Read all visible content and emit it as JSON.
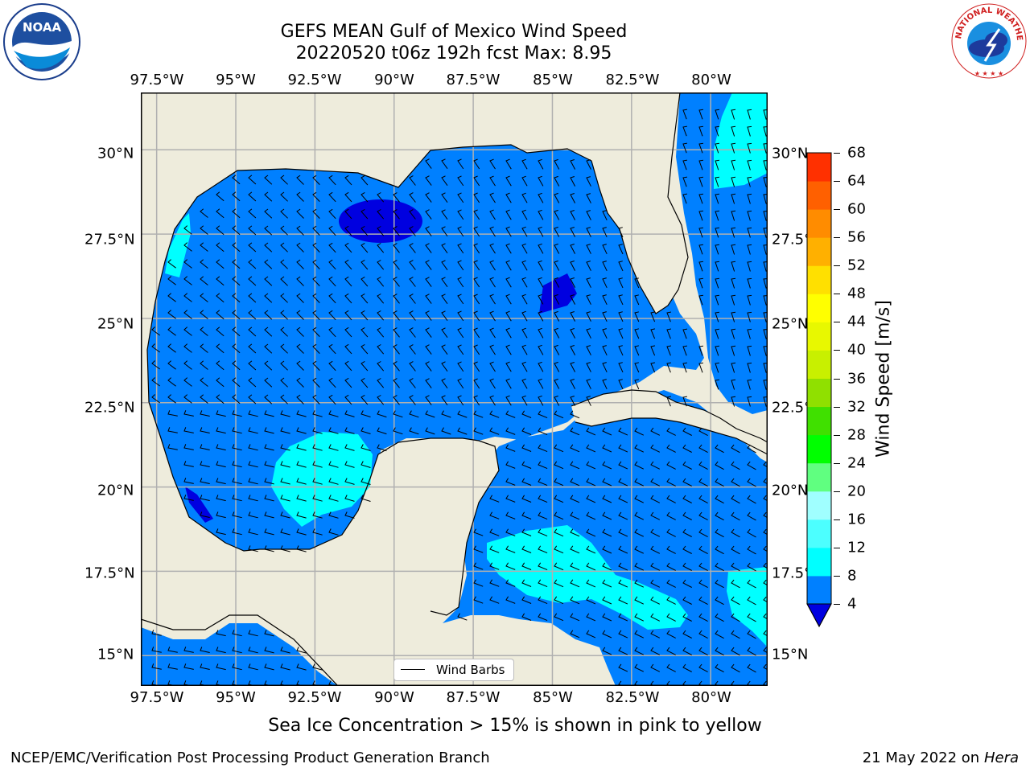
{
  "title": "GEFS MEAN Gulf of Mexico Wind Speed",
  "subtitle": "20220520 t06z 192h fcst   Max: 8.95",
  "map": {
    "lon_labels": [
      "97.5°W",
      "95°W",
      "92.5°W",
      "90°W",
      "87.5°W",
      "85°W",
      "82.5°W",
      "80°W"
    ],
    "lat_labels": [
      "30°N",
      "27.5°N",
      "25°N",
      "22.5°N",
      "20°N",
      "17.5°N",
      "15°N"
    ],
    "lon_values": [
      -97.5,
      -95,
      -92.5,
      -90,
      -87.5,
      -85,
      -82.5,
      -80
    ],
    "lat_values": [
      30,
      27.5,
      25,
      22.5,
      20,
      17.5,
      15
    ],
    "extent": {
      "lon_min": -98,
      "lon_max": -78.2,
      "lat_min": 14.1,
      "lat_max": 31.7
    },
    "land_color": "#eeecdc",
    "ocean_fill_color": "#0080ff",
    "legend_label": "Wind Barbs",
    "max_value": "8.95"
  },
  "colorbar": {
    "title": "Wind Speed [m/s]",
    "ticks": [
      "4",
      "8",
      "12",
      "16",
      "20",
      "24",
      "28",
      "32",
      "36",
      "40",
      "44",
      "48",
      "52",
      "56",
      "60",
      "64",
      "68"
    ],
    "colors": [
      "#0080ff",
      "#00ffff",
      "#4cffff",
      "#a0ffff",
      "#60ff80",
      "#00ff00",
      "#40e000",
      "#90e000",
      "#c8f000",
      "#e8f800",
      "#ffff00",
      "#ffe000",
      "#ffb000",
      "#ff8c00",
      "#ff6000",
      "#ff3000"
    ],
    "under_color": "#0000e0"
  },
  "footer": {
    "note": "Sea Ice Concentration > 15% is shown in pink to yellow",
    "left": "NCEP/EMC/Verification Post Processing Product Generation Branch",
    "right_date": "21 May 2022 on",
    "right_host": "Hera"
  },
  "logos": {
    "noaa_text": "NOAA",
    "nws_text": "NATIONAL WEATHER SERVICE"
  }
}
